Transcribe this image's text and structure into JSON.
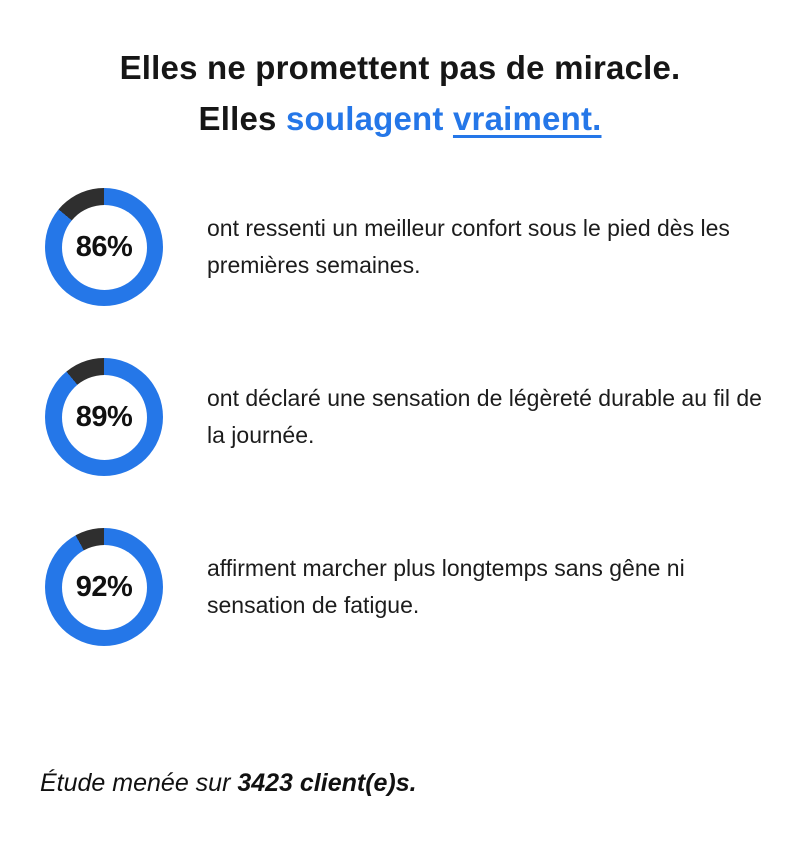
{
  "colors": {
    "blue": "#2577e8",
    "dark": "#2f2f2f",
    "text": "#111111",
    "background": "#ffffff"
  },
  "title": {
    "line1": "Elles ne promettent pas de miracle.",
    "line2_black": "Elles ",
    "line2_blue": "soulagent ",
    "line2_blue_underline": "vraiment."
  },
  "stats": [
    {
      "percent": "86%",
      "value": 86,
      "description": "ont ressenti un meilleur confort sous le pied dès les premières semaines."
    },
    {
      "percent": "89%",
      "value": 89,
      "description": "ont déclaré une sensation de légèreté durable au fil de la journée."
    },
    {
      "percent": "92%",
      "value": 92,
      "description": "affirment marcher plus longtemps sans gêne ni sensation de fatigue."
    }
  ],
  "footer": {
    "prefix": "Étude menée sur ",
    "bold": "3423 client(e)s."
  },
  "chart_data": {
    "type": "pie",
    "title": "Elles ne promettent pas de miracle. Elles soulagent vraiment.",
    "subtitle": "Étude menée sur 3423 client(e)s.",
    "series": [
      {
        "name": "ont ressenti un meilleur confort sous le pied dès les premières semaines.",
        "value": 86,
        "remainder": 14
      },
      {
        "name": "ont déclaré une sensation de légèreté durable au fil de la journée.",
        "value": 89,
        "remainder": 11
      },
      {
        "name": "affirment marcher plus longtemps sans gêne ni sensation de fatigue.",
        "value": 92,
        "remainder": 8
      }
    ],
    "legend_position": "none",
    "style": "donut, blue fill with dark remainder arc ending at 12 o'clock"
  }
}
